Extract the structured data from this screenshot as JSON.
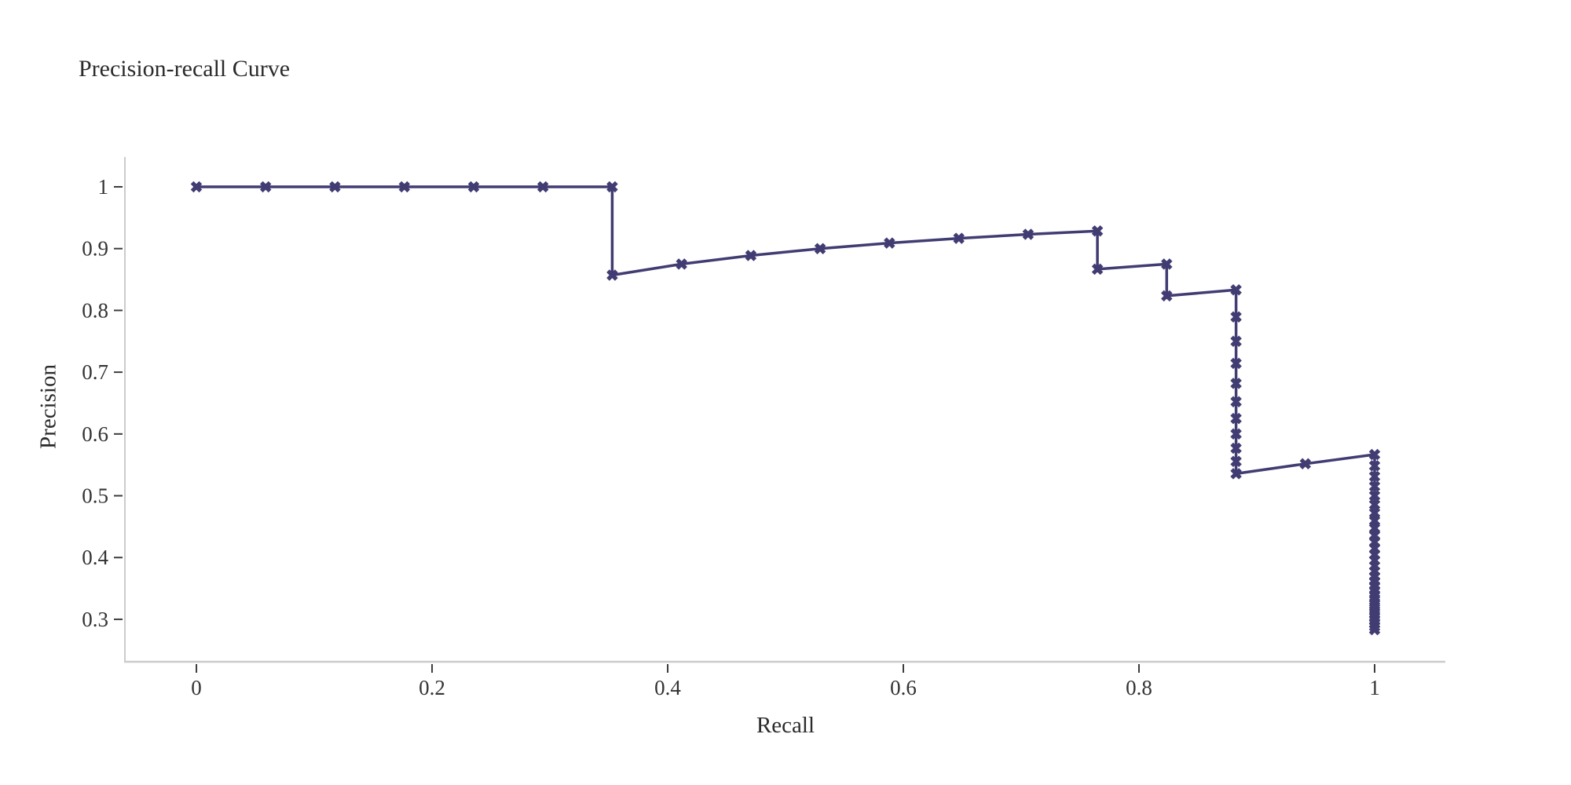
{
  "style": {
    "background": "#ffffff",
    "axis_line_color": "#cbcbcb",
    "tick_color": "#3c3c3c",
    "tick_label_color": "#333333",
    "text_color": "#2b2b2b"
  },
  "chart_data": {
    "type": "line",
    "title": "Precision-recall Curve",
    "xlabel": "Recall",
    "ylabel": "Precision",
    "line_color": "#413c72",
    "marker": "thick-x",
    "grid": false,
    "legend": false,
    "xlim": [
      -0.0607,
      1.06
    ],
    "ylim": [
      0.2313,
      1.0483
    ],
    "x_ticks": [
      0,
      0.2,
      0.4,
      0.6,
      0.8,
      1
    ],
    "y_ticks": [
      0.3,
      0.4,
      0.5,
      0.6,
      0.7,
      0.8,
      0.9,
      1
    ],
    "series": [
      {
        "name": "precision-recall",
        "x": [
          0,
          0.0588,
          0.1176,
          0.1765,
          0.2353,
          0.2941,
          0.3529,
          0.3529,
          0.4118,
          0.4706,
          0.5294,
          0.5882,
          0.6471,
          0.7059,
          0.7647,
          0.7647,
          0.8235,
          0.8235,
          0.8824,
          0.8824,
          0.8824,
          0.8824,
          0.8824,
          0.8824,
          0.8824,
          0.8824,
          0.8824,
          0.8824,
          0.8824,
          0.9412,
          1,
          1,
          1,
          1,
          1,
          1,
          1,
          1,
          1,
          1,
          1,
          1,
          1,
          1,
          1,
          1,
          1,
          1,
          1,
          1,
          1,
          1,
          1,
          1,
          1,
          1,
          1,
          1,
          1,
          1,
          1
        ],
        "y": [
          1,
          1,
          1,
          1,
          1,
          1,
          1,
          0.8571,
          0.875,
          0.8889,
          0.9,
          0.9091,
          0.9167,
          0.9231,
          0.9286,
          0.8667,
          0.875,
          0.8235,
          0.8333,
          0.7895,
          0.75,
          0.7143,
          0.6818,
          0.6522,
          0.625,
          0.6,
          0.5769,
          0.5556,
          0.5357,
          0.5517,
          0.5667,
          0.5484,
          0.5313,
          0.5152,
          0.5,
          0.4857,
          0.4722,
          0.4595,
          0.4474,
          0.4359,
          0.425,
          0.4146,
          0.4048,
          0.3953,
          0.3864,
          0.3778,
          0.3696,
          0.3617,
          0.3542,
          0.3469,
          0.34,
          0.3333,
          0.3269,
          0.3208,
          0.3148,
          0.3091,
          0.3036,
          0.2982,
          0.2931,
          0.2881,
          0.2833
        ]
      }
    ]
  }
}
